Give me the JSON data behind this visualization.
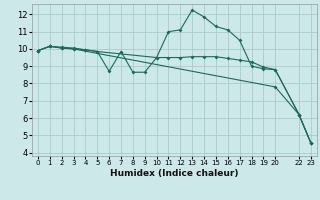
{
  "xlabel": "Humidex (Indice chaleur)",
  "bg_color": "#cce8e8",
  "grid_color": "#aacccc",
  "line_color": "#1a6b5a",
  "xlim": [
    -0.5,
    23.5
  ],
  "ylim": [
    3.8,
    12.6
  ],
  "yticks": [
    4,
    5,
    6,
    7,
    8,
    9,
    10,
    11,
    12
  ],
  "xtick_positions": [
    0,
    1,
    2,
    3,
    4,
    5,
    6,
    7,
    8,
    9,
    10,
    11,
    12,
    13,
    14,
    15,
    16,
    17,
    18,
    19,
    20,
    22,
    23
  ],
  "xtick_labels": [
    "0",
    "1",
    "2",
    "3",
    "4",
    "5",
    "6",
    "7",
    "8",
    "9",
    "10",
    "11",
    "12",
    "13",
    "14",
    "15",
    "16",
    "17",
    "18",
    "19",
    "20",
    "22",
    "23"
  ],
  "line1_x": [
    0,
    1,
    2,
    3,
    4,
    5,
    6,
    7,
    8,
    9,
    10,
    11,
    12,
    13,
    14,
    15,
    16,
    17,
    18,
    19,
    20,
    22,
    23
  ],
  "line1_y": [
    9.9,
    10.15,
    10.1,
    10.05,
    9.95,
    9.85,
    8.7,
    9.85,
    8.65,
    8.65,
    9.5,
    11.0,
    11.1,
    12.25,
    11.85,
    11.3,
    11.1,
    10.5,
    9.0,
    8.85,
    8.8,
    6.2,
    4.55
  ],
  "line2_x": [
    0,
    1,
    2,
    3,
    4,
    5,
    10,
    11,
    12,
    13,
    14,
    15,
    16,
    17,
    18,
    19,
    20,
    22,
    23
  ],
  "line2_y": [
    9.9,
    10.15,
    10.05,
    10.0,
    9.95,
    9.85,
    9.5,
    9.5,
    9.5,
    9.55,
    9.55,
    9.55,
    9.45,
    9.35,
    9.25,
    8.95,
    8.8,
    6.2,
    4.55
  ],
  "line3_x": [
    0,
    1,
    2,
    3,
    20,
    22,
    23
  ],
  "line3_y": [
    9.9,
    10.15,
    10.05,
    10.0,
    7.8,
    6.2,
    4.55
  ]
}
